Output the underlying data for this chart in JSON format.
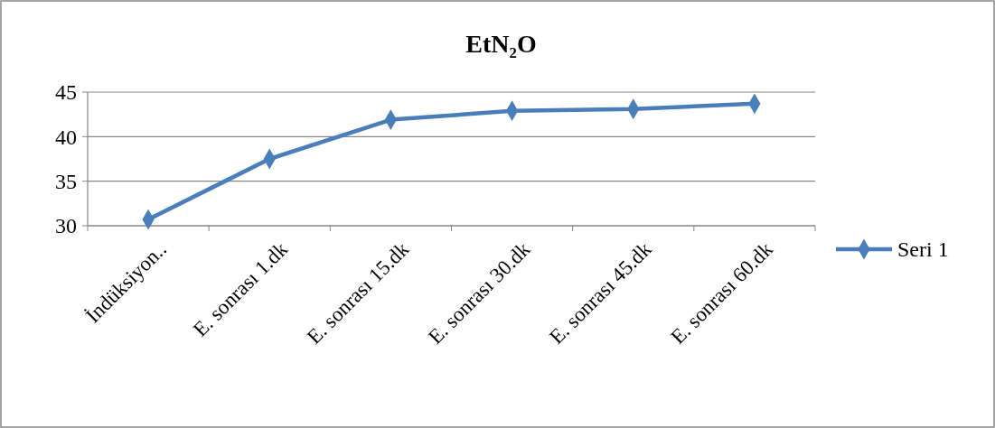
{
  "chart_data": {
    "type": "line",
    "title": "EtN₂O",
    "categories": [
      "İndüksiyon..",
      "E. sonrası 1.dk",
      "E. sonrası 15.dk",
      "E. sonrası 30.dk",
      "E. sonrası 45.dk",
      "E. sonrası 60.dk"
    ],
    "series": [
      {
        "name": "Seri 1",
        "color": "#4a7ebb",
        "values": [
          30.7,
          37.5,
          41.9,
          42.9,
          43.1,
          43.7
        ]
      }
    ],
    "ylim": [
      30,
      45
    ],
    "yticks": [
      30,
      35,
      40,
      45
    ],
    "grid": "y",
    "legend": "right",
    "marker": "diamond",
    "line_style": "solid"
  }
}
